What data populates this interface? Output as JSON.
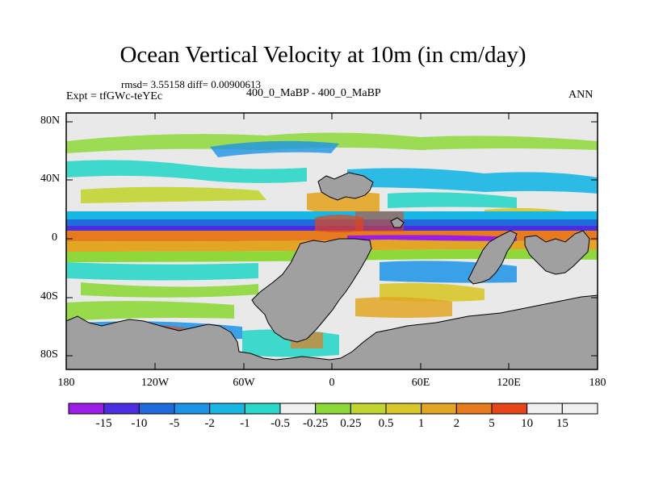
{
  "title": "Ocean Vertical Velocity at 10m (in cm/day)",
  "stats": "rmsd= 3.55158 diff= 0.00900613",
  "expt": "Expt = tfGWc-teYEc",
  "subtitle": "400_0_MaBP - 400_0_MaBP",
  "season": "ANN",
  "lat_ticks": [
    "80N",
    "40N",
    "0",
    "40S",
    "80S"
  ],
  "lon_ticks": [
    "180",
    "120W",
    "60W",
    "0",
    "60E",
    "120E",
    "180"
  ],
  "colorbar": {
    "labels": [
      "-15",
      "-10",
      "-5",
      "-2",
      "-1",
      "-0.5",
      "-0.25",
      "0.25",
      "0.5",
      "1",
      "2",
      "5",
      "10",
      "15"
    ],
    "colors": [
      "#9a1ee8",
      "#4b2ee0",
      "#1f6bdc",
      "#1b93e6",
      "#17b6e3",
      "#2ad7c8",
      "#e9e9e9",
      "#8ed83a",
      "#c1d530",
      "#d8c72a",
      "#e2a624",
      "#e57b1c",
      "#e6451a",
      "#f0f0f0",
      "#f0f0f0"
    ],
    "land_color": "#a0a0a0"
  }
}
